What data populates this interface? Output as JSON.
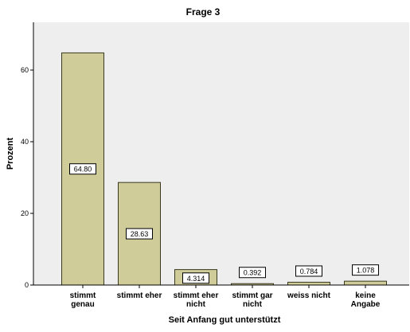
{
  "colors": {
    "bar_fill": "#CFCC9A",
    "bar_stroke": "#3A3A20",
    "plot_background": "#EEEEEE",
    "label_box_fill": "#FFFFFF",
    "text": "#000000"
  },
  "chart_data": {
    "type": "bar",
    "title": "Frage 3",
    "xlabel": "Seit Anfang gut unterstützt",
    "ylabel": "Prozent",
    "ylim": [
      0,
      70
    ],
    "yticks": [
      0,
      20,
      40,
      60
    ],
    "grid": false,
    "categories": [
      [
        "stimmt",
        "genau"
      ],
      [
        "stimmt eher"
      ],
      [
        "stimmt eher",
        "nicht"
      ],
      [
        "stimmt gar",
        "nicht"
      ],
      [
        "weiss nicht"
      ],
      [
        "keine",
        "Angabe"
      ]
    ],
    "values": [
      64.8,
      28.63,
      4.314,
      0.392,
      0.784,
      1.078
    ],
    "data_labels": [
      "64.80",
      "28.63",
      "4.314",
      "0.392",
      "0.784",
      "1.078"
    ]
  }
}
